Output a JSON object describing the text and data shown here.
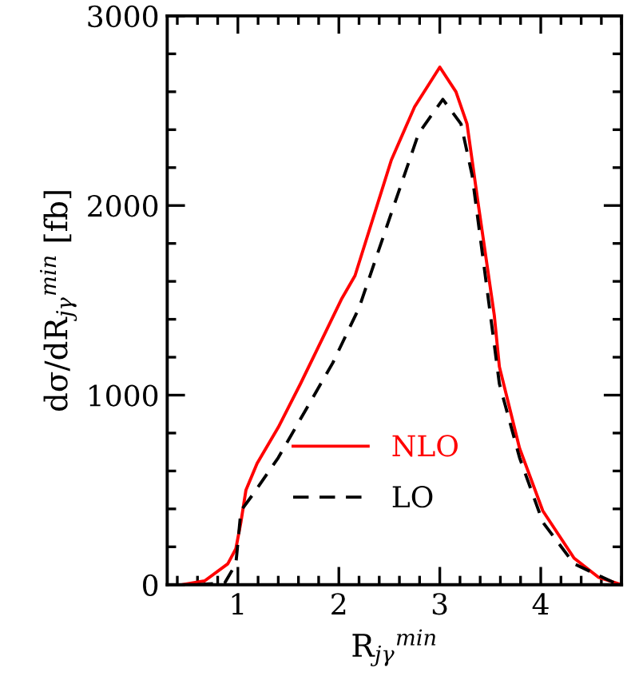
{
  "chart_data": {
    "type": "line",
    "xlabel": "R$_{jγ}$$^{min}$",
    "ylabel": "dσ/dR$_{jγ}$$^{min}$ [fb]",
    "xlim": [
      0.3,
      4.8
    ],
    "ylim": [
      0,
      3000
    ],
    "xticks": [
      1,
      2,
      3,
      4
    ],
    "yticks": [
      0,
      1000,
      2000,
      3000
    ],
    "grid": false,
    "legend": "bottom",
    "series": [
      {
        "name": "NLO",
        "color": "#ff0000",
        "line_style": "solid",
        "x": [
          0.45,
          0.67,
          0.9,
          0.98,
          1.03,
          1.08,
          1.19,
          1.4,
          1.62,
          1.83,
          2.03,
          2.16,
          2.52,
          2.75,
          3.0,
          3.16,
          3.27,
          3.38,
          3.54,
          3.59,
          3.79,
          4.02,
          4.33,
          4.57,
          4.8
        ],
        "values": [
          0,
          20,
          110,
          190,
          330,
          500,
          640,
          830,
          1060,
          1290,
          1510,
          1630,
          2240,
          2520,
          2730,
          2600,
          2430,
          2010,
          1420,
          1150,
          720,
          390,
          140,
          40,
          0
        ]
      },
      {
        "name": "LO",
        "color": "#000000",
        "line_style": "dashed",
        "x": [
          0.6,
          0.87,
          0.98,
          1.03,
          1.14,
          1.4,
          1.67,
          1.94,
          2.2,
          2.52,
          2.79,
          3.03,
          3.21,
          3.32,
          3.48,
          3.59,
          3.79,
          4.02,
          4.33,
          4.73
        ],
        "values": [
          0,
          10,
          110,
          390,
          470,
          670,
          920,
          1170,
          1460,
          1960,
          2380,
          2560,
          2430,
          2160,
          1510,
          1060,
          670,
          330,
          110,
          10
        ]
      }
    ]
  }
}
